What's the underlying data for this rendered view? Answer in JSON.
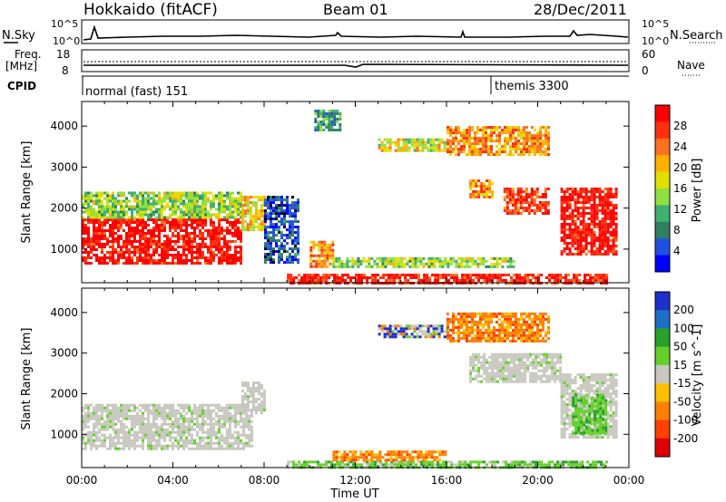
{
  "header": {
    "station": "Hokkaido (fitACF)",
    "beam": "Beam 01",
    "date": "28/Dec/2011"
  },
  "top_panel": {
    "nsky_label": "N.Sky",
    "left_ticks": [
      "10^5",
      "10^0"
    ],
    "right_ticks": [
      "10^5",
      "10^0"
    ],
    "nsearch_label": "N.Search"
  },
  "freq_panel": {
    "label_line1": "Freq.",
    "label_line2": "[MHz]",
    "left_ticks": [
      "18",
      "8"
    ],
    "right_ticks": [
      "60",
      "0"
    ],
    "nave_label": "Nave"
  },
  "cpid": {
    "label": "CPID",
    "segments": [
      {
        "text": "normal (fast) 151",
        "start_hour": 0
      },
      {
        "text": "themis 3300",
        "start_hour": 18.0
      }
    ]
  },
  "chart_data": [
    {
      "type": "heatmap",
      "name": "Power",
      "ylabel": "Slant Range [km]",
      "colorbar_label": "Power [dB]",
      "colorbar_ticks": [
        "28",
        "24",
        "20",
        "16",
        "12",
        "8",
        "4"
      ],
      "colorbar_colors": [
        "#ff0000",
        "#ff3010",
        "#ff7020",
        "#ffb000",
        "#e0e000",
        "#90e040",
        "#40b070",
        "#308060",
        "#2050e0",
        "#0000ff"
      ],
      "x_range_hours": [
        0,
        24
      ],
      "ylim": [
        180,
        4600
      ],
      "y_ticks": [
        1000,
        2000,
        3000,
        4000
      ],
      "regions": [
        {
          "t0": 0.0,
          "t1": 7.0,
          "r0": 650,
          "r1": 1750,
          "level": 0.95
        },
        {
          "t0": 0.0,
          "t1": 7.0,
          "r0": 1750,
          "r1": 2400,
          "level": 0.45
        },
        {
          "t0": 7.0,
          "t1": 8.0,
          "r0": 1500,
          "r1": 2300,
          "level": 0.6
        },
        {
          "t0": 8.0,
          "t1": 9.5,
          "r0": 700,
          "r1": 2300,
          "level": 0.15
        },
        {
          "t0": 10.0,
          "t1": 11.0,
          "r0": 600,
          "r1": 1200,
          "level": 0.7
        },
        {
          "t0": 10.2,
          "t1": 11.3,
          "r0": 3900,
          "r1": 4400,
          "level": 0.3
        },
        {
          "t0": 13.0,
          "t1": 16.0,
          "r0": 3400,
          "r1": 3700,
          "level": 0.55
        },
        {
          "t0": 16.0,
          "t1": 20.5,
          "r0": 3300,
          "r1": 4000,
          "level": 0.7
        },
        {
          "t0": 17.0,
          "t1": 18.0,
          "r0": 2300,
          "r1": 2700,
          "level": 0.7
        },
        {
          "t0": 18.5,
          "t1": 20.5,
          "r0": 1900,
          "r1": 2500,
          "level": 0.85
        },
        {
          "t0": 21.0,
          "t1": 23.5,
          "r0": 900,
          "r1": 2500,
          "level": 0.95
        },
        {
          "t0": 9.0,
          "t1": 23.0,
          "r0": 180,
          "r1": 400,
          "level": 0.9
        },
        {
          "t0": 11.0,
          "t1": 19.0,
          "r0": 600,
          "r1": 800,
          "level": 0.45
        }
      ]
    },
    {
      "type": "heatmap",
      "name": "Velocity",
      "ylabel": "Slant Range [km]",
      "colorbar_label": "Velocity [m s^-1]",
      "colorbar_ticks": [
        "200",
        "100",
        "50",
        "15",
        "-15",
        "-50",
        "-100",
        "-200"
      ],
      "colorbar_colors": [
        "#1e2ec8",
        "#1e6ec8",
        "#2aa02a",
        "#66d02a",
        "#c8c8c0",
        "#ffc000",
        "#ff8000",
        "#ff4000",
        "#e00000"
      ],
      "x_range_hours": [
        0,
        24
      ],
      "ylim": [
        180,
        4600
      ],
      "y_ticks": [
        1000,
        2000,
        3000,
        4000
      ],
      "regions": [
        {
          "t0": 0.0,
          "t1": 7.5,
          "r0": 650,
          "r1": 1750,
          "kind": "ground"
        },
        {
          "t0": 7.0,
          "t1": 8.0,
          "r0": 1500,
          "r1": 2300,
          "kind": "ground"
        },
        {
          "t0": 13.0,
          "t1": 16.0,
          "r0": 3400,
          "r1": 3700,
          "kind": "mixed"
        },
        {
          "t0": 16.0,
          "t1": 20.5,
          "r0": 3300,
          "r1": 4000,
          "kind": "away"
        },
        {
          "t0": 17.0,
          "t1": 21.0,
          "r0": 2300,
          "r1": 3000,
          "kind": "ground"
        },
        {
          "t0": 21.0,
          "t1": 23.5,
          "r0": 900,
          "r1": 2500,
          "kind": "ground"
        },
        {
          "t0": 21.5,
          "t1": 23.0,
          "r0": 1000,
          "r1": 2000,
          "kind": "toward"
        },
        {
          "t0": 9.0,
          "t1": 23.0,
          "r0": 180,
          "r1": 350,
          "kind": "toward"
        },
        {
          "t0": 11.0,
          "t1": 16.0,
          "r0": 350,
          "r1": 600,
          "kind": "away"
        }
      ]
    }
  ],
  "x_axis": {
    "ticks": [
      "00:00",
      "04:00",
      "08:00",
      "12:00",
      "16:00",
      "20:00",
      "00:00"
    ],
    "label": "Time UT"
  }
}
